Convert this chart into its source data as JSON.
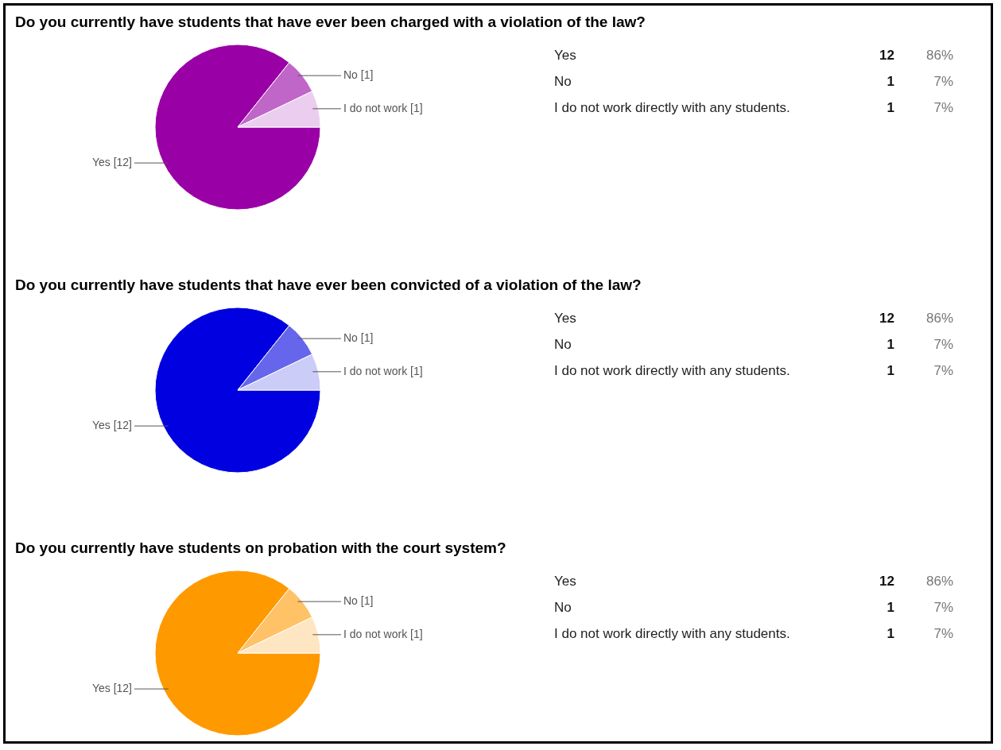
{
  "chart_data": [
    {
      "type": "pie",
      "title": "Do you currently have students that have ever been charged with a violation of the law?",
      "categories": [
        "Yes",
        "No",
        "I do not work"
      ],
      "values": [
        12,
        1,
        1
      ],
      "colors": [
        "#9900a6",
        "#c066c8",
        "#ebcdef"
      ],
      "value_labels": [
        "[12]",
        "[1]",
        "[1]"
      ]
    },
    {
      "type": "other",
      "annotations": [
        "Yes",
        "12",
        "86%",
        "No",
        "1",
        "7%",
        "I do not work directly with any students.",
        "1",
        "7%"
      ]
    },
    {
      "type": "pie",
      "title": "Do you currently have students that have ever been convicted of a violation of the law?",
      "categories": [
        "Yes",
        "No",
        "I do not work"
      ],
      "values": [
        12,
        1,
        1
      ],
      "colors": [
        "#0000e0",
        "#6666ec",
        "#ccccf8"
      ],
      "value_labels": [
        "[12]",
        "[1]",
        "[1]"
      ]
    },
    {
      "type": "other",
      "annotations": [
        "Yes",
        "12",
        "86%",
        "No",
        "1",
        "7%",
        "I do not work directly with any students.",
        "1",
        "7%"
      ]
    },
    {
      "type": "pie",
      "title": "Do you currently have students on probation with the court system?",
      "categories": [
        "Yes",
        "No",
        "I do not work"
      ],
      "values": [
        12,
        1,
        1
      ],
      "colors": [
        "#ff9900",
        "#ffc266",
        "#ffe6c2"
      ],
      "value_labels": [
        "[12]",
        "[1]",
        "[1]"
      ]
    },
    {
      "type": "other",
      "annotations": [
        "Yes",
        "12",
        "86%",
        "No",
        "1",
        "7%",
        "I do not work directly with any students.",
        "1",
        "7%"
      ]
    }
  ]
}
